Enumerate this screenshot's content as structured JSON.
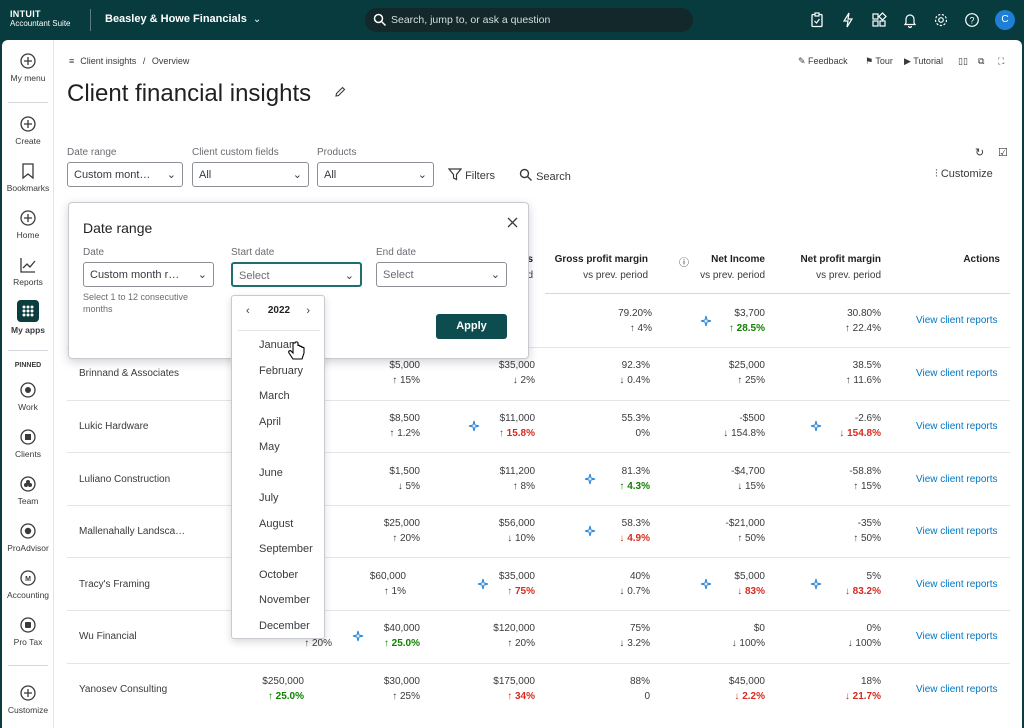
{
  "topbar": {
    "brand_line1": "INTUIT",
    "brand_line2": "Accountant Suite",
    "company": "Beasley & Howe Financials",
    "search_placeholder": "Search, jump to, or ask a question",
    "avatar_initial": "C"
  },
  "sidebar": {
    "items": [
      {
        "label": "My menu"
      },
      {
        "label": "Create"
      },
      {
        "label": "Bookmarks"
      },
      {
        "label": "Home"
      },
      {
        "label": "Reports"
      },
      {
        "label": "My apps"
      },
      {
        "label": "Work"
      },
      {
        "label": "Clients"
      },
      {
        "label": "Team"
      },
      {
        "label": "ProAdvisor"
      },
      {
        "label": "Accounting"
      },
      {
        "label": "Pro Tax"
      },
      {
        "label": "Customize"
      }
    ],
    "pinned_label": "PINNED"
  },
  "header": {
    "breadcrumb_parent": "Client insights",
    "breadcrumb_sep": "/",
    "breadcrumb_current": "Overview",
    "feedback": "Feedback",
    "tour": "Tour",
    "tutorial": "Tutorial",
    "title": "Client financial insights"
  },
  "filters": {
    "date_range_label": "Date range",
    "date_range_value": "Custom mont…",
    "custom_fields_label": "Client custom fields",
    "custom_fields_value": "All",
    "products_label": "Products",
    "products_value": "All",
    "filters_btn": "Filters",
    "search_btn": "Search",
    "customize_btn": "Customize"
  },
  "table": {
    "headers": {
      "col3_suffix": "s",
      "col3_sub": "d",
      "gpm": "Gross profit margin",
      "gpm_sub": "vs prev. period",
      "ni": "Net Income",
      "ni_sub": "vs prev. period",
      "npm": "Net profit margin",
      "npm_sub": "vs prev. period",
      "actions": "Actions"
    },
    "first_row": {
      "gpm": "79.20%",
      "gpm_delta": "4%",
      "ni": "$3,700",
      "ni_delta": "28.5%",
      "npm": "30.80%",
      "npm_delta": "22.4%",
      "link": "View client reports"
    },
    "rows": [
      {
        "name": "Brinnand & Associates",
        "c1": "$5,000",
        "c1d": "15%",
        "c2": "$35,000",
        "c2d": "2%",
        "c3": "92.3%",
        "c3d": "0.4%",
        "c4": "$25,000",
        "c4d": "25%",
        "c5": "38.5%",
        "c5d": "11.6%",
        "link": "View client reports"
      },
      {
        "name": "Lukic Hardware",
        "c1": "$8,500",
        "c1d": "1.2%",
        "c2": "$11,000",
        "c2d": "15.8%",
        "c3": "55.3%",
        "c3d": "0%",
        "c4": "-$500",
        "c4d": "154.8%",
        "c5": "-2.6%",
        "c5d": "154.8%",
        "link": "View client reports"
      },
      {
        "name": "Luliano Construction",
        "c1": "$1,500",
        "c1d": "5%",
        "c2": "$11,200",
        "c2d": "8%",
        "c3": "81.3%",
        "c3d": "4.3%",
        "c4": "-$4,700",
        "c4d": "15%",
        "c5": "-58.8%",
        "c5d": "15%",
        "link": "View client reports"
      },
      {
        "name": "Mallenahally Landsca…",
        "c1": "$25,000",
        "c1d": "20%",
        "c2": "$56,000",
        "c2d": "10%",
        "c3": "58.3%",
        "c3d": "4.9%",
        "c4": "-$21,000",
        "c4d": "50%",
        "c5": "-35%",
        "c5d": "50%",
        "link": "View client reports"
      },
      {
        "name": "Tracy's Framing",
        "c0": "$60,000",
        "c0d": "1%",
        "c2": "$35,000",
        "c2d": "75%",
        "c3": "40%",
        "c3d": "0.7%",
        "c4": "$5,000",
        "c4d": "83%",
        "c5": "5%",
        "c5d": "83.2%",
        "link": "View client reports"
      },
      {
        "name": "Wu Financial",
        "c0d": "20%",
        "c1": "$40,000",
        "c1d": "25.0%",
        "c2": "$120,000",
        "c2d": "20%",
        "c3": "75%",
        "c3d": "3.2%",
        "c4": "$0",
        "c4d": "100%",
        "c5": "0%",
        "c5d": "100%",
        "link": "View client reports"
      },
      {
        "name": "Yanosev Consulting",
        "c0": "$250,000",
        "c0d": "25.0%",
        "c1": "$30,000",
        "c1d": "25%",
        "c2": "$175,000",
        "c2d": "34%",
        "c3": "88%",
        "c3d": "0",
        "c4": "$45,000",
        "c4d": "2.2%",
        "c5": "18%",
        "c5d": "21.7%",
        "link": "View client reports"
      }
    ]
  },
  "date_popup": {
    "title": "Date range",
    "date_label": "Date",
    "date_value": "Custom month r…",
    "start_label": "Start date",
    "start_placeholder": "Select",
    "end_label": "End date",
    "end_placeholder": "Select",
    "hint": "Select 1 to 12 consecutive months",
    "apply": "Apply"
  },
  "month_picker": {
    "year": "2022",
    "months": [
      "January",
      "February",
      "March",
      "April",
      "May",
      "June",
      "July",
      "August",
      "September",
      "October",
      "November",
      "December"
    ]
  },
  "colors": {
    "brand_dark": "#073b3d",
    "apply_button": "#0d4d4f",
    "link_blue": "#0077c5",
    "positive_green": "#108000",
    "negative_red": "#d52b1e"
  }
}
